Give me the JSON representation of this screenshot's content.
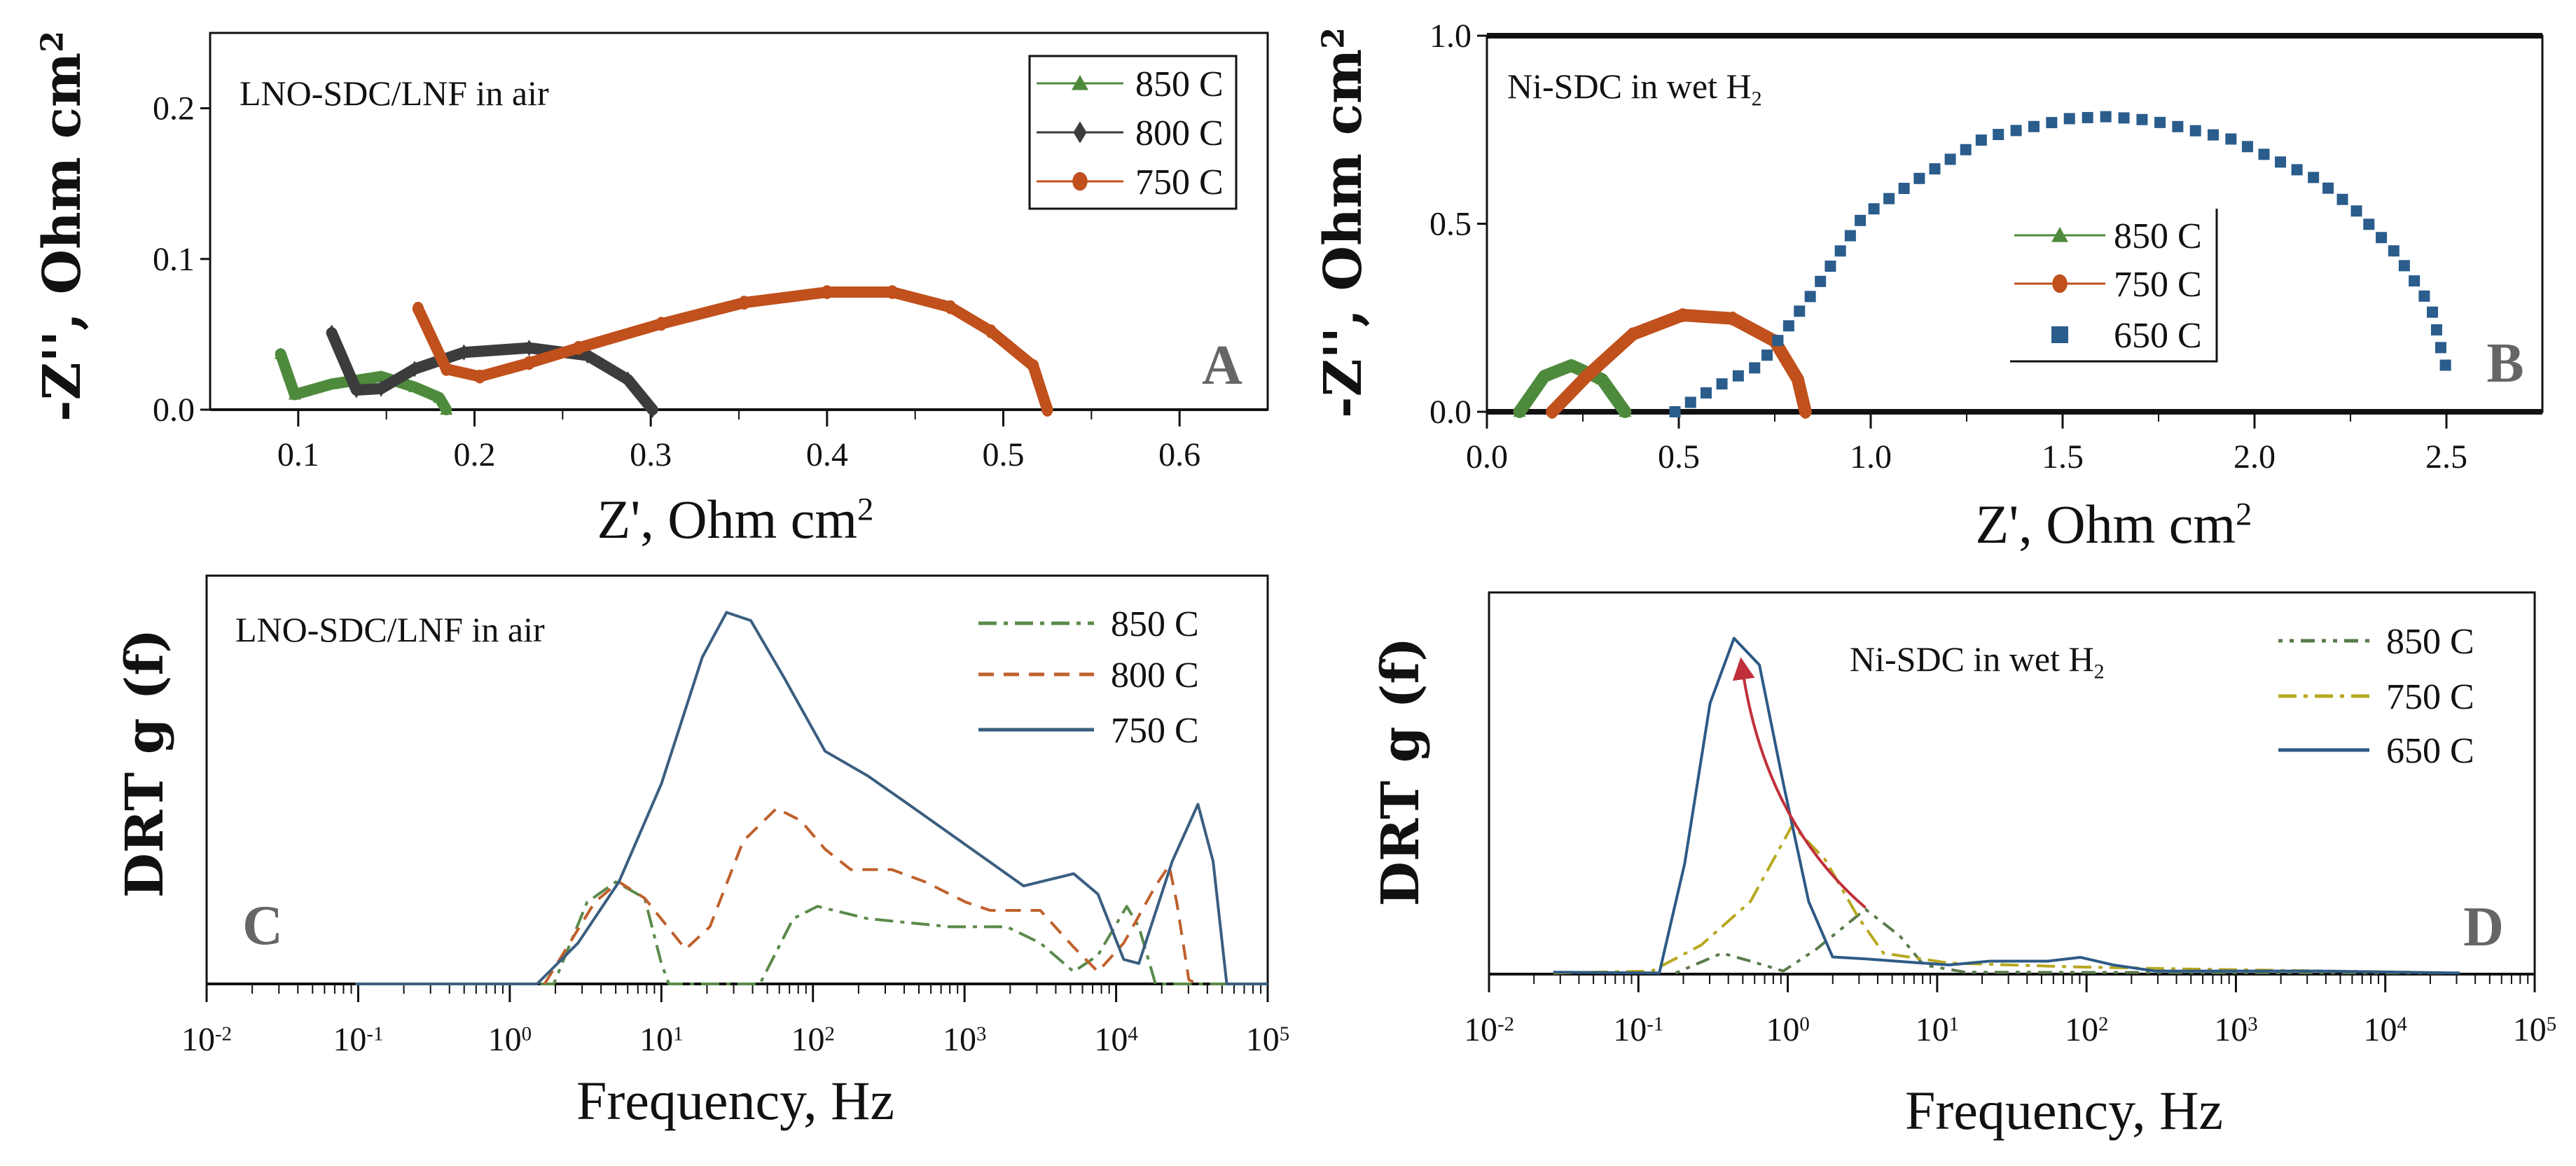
{
  "chart_data": [
    {
      "id": "A",
      "type": "line",
      "panel_letter": "A",
      "annotation": "LNO-SDC/LNF in air",
      "xlabel": "Z', Ohm cm",
      "xlabel_sup": "2",
      "ylabel": "-Z'', Ohm cm",
      "ylabel_sup": "2",
      "xlim": [
        0.05,
        0.65
      ],
      "ylim": [
        0,
        0.25
      ],
      "xticks": [
        0.1,
        0.2,
        0.3,
        0.4,
        0.5,
        0.6
      ],
      "xtick_labels": [
        "0.1",
        "0.2",
        "0.3",
        "0.4",
        "0.5",
        "0.6"
      ],
      "yticks": [
        0.0,
        0.1,
        0.2
      ],
      "ytick_labels": [
        "0.0",
        "0.1",
        "0.2"
      ],
      "legend_placement": "top-right",
      "series": [
        {
          "name": "850 C",
          "color": "#4e8a3c",
          "marker": "triangle",
          "x": [
            0.09,
            0.098,
            0.119,
            0.147,
            0.166,
            0.18,
            0.184
          ],
          "y": [
            0.037,
            0.01,
            0.017,
            0.022,
            0.015,
            0.008,
            0.0
          ]
        },
        {
          "name": "800 C",
          "color": "#3c3c3e",
          "marker": "diamond",
          "x": [
            0.119,
            0.133,
            0.147,
            0.166,
            0.194,
            0.231,
            0.264,
            0.287,
            0.301
          ],
          "y": [
            0.051,
            0.013,
            0.014,
            0.027,
            0.038,
            0.041,
            0.036,
            0.02,
            0.0
          ]
        },
        {
          "name": "750 C",
          "color": "#c0501c",
          "marker": "circle",
          "x": [
            0.168,
            0.184,
            0.203,
            0.231,
            0.259,
            0.306,
            0.353,
            0.4,
            0.437,
            0.47,
            0.493,
            0.517,
            0.525
          ],
          "y": [
            0.067,
            0.027,
            0.022,
            0.031,
            0.041,
            0.057,
            0.071,
            0.078,
            0.078,
            0.068,
            0.052,
            0.029,
            0.0
          ]
        }
      ]
    },
    {
      "id": "B",
      "type": "scatter",
      "panel_letter": "B",
      "annotation": "Ni-SDC in wet H",
      "annotation_sub": "2",
      "xlabel": "Z', Ohm cm",
      "xlabel_sup": "2",
      "ylabel": "-Z'', Ohm cm",
      "ylabel_sup": "2",
      "xlim": [
        0,
        2.75
      ],
      "ylim": [
        0,
        1.0
      ],
      "xticks": [
        0.0,
        0.5,
        1.0,
        1.5,
        2.0,
        2.5
      ],
      "xtick_labels": [
        "0.0",
        "0.5",
        "1.0",
        "1.5",
        "2.0",
        "2.5"
      ],
      "yticks": [
        0.0,
        0.5,
        1.0
      ],
      "ytick_labels": [
        "0.0",
        "0.5",
        "1.0"
      ],
      "legend_placement": "center",
      "series": [
        {
          "name": "850 C",
          "color": "#4e8a3c",
          "marker": "triangle",
          "x": [
            0.085,
            0.15,
            0.22,
            0.3,
            0.36
          ],
          "y": [
            0,
            0.095,
            0.123,
            0.086,
            0
          ]
        },
        {
          "name": "750 C",
          "color": "#c0501c",
          "marker": "circle",
          "x": [
            0.17,
            0.26,
            0.38,
            0.51,
            0.64,
            0.75,
            0.81,
            0.83
          ],
          "y": [
            0,
            0.095,
            0.206,
            0.257,
            0.248,
            0.188,
            0.086,
            0
          ]
        },
        {
          "name": "650 C",
          "color": "#2a5c8c",
          "marker": "square",
          "x": [
            0.49,
            0.6,
            0.71,
            0.77,
            0.85,
            0.98,
            1.11,
            1.3,
            1.52,
            1.62,
            1.73,
            1.94,
            2.16,
            2.26,
            2.37,
            2.46,
            2.49,
            2.5
          ],
          "y": [
            0,
            0.068,
            0.123,
            0.206,
            0.317,
            0.52,
            0.61,
            0.73,
            0.78,
            0.785,
            0.775,
            0.725,
            0.62,
            0.54,
            0.42,
            0.28,
            0.15,
            0.115
          ]
        }
      ]
    },
    {
      "id": "C",
      "type": "line",
      "panel_letter": "C",
      "annotation": "LNO-SDC/LNF in air",
      "xlabel": "Frequency, Hz",
      "ylabel": "DRT g (f)",
      "xscale": "log",
      "xlim_exp": [
        -2,
        5
      ],
      "tick_base": "10",
      "xtick_exps": [
        "-2",
        "-1",
        "0",
        "1",
        "2",
        "3",
        "4",
        "5"
      ],
      "ylim": [
        0,
        1
      ],
      "yticks": [],
      "legend_placement": "top-right",
      "series": [
        {
          "name": "850 C",
          "color": "#5a8a4a",
          "dash": "dashdot",
          "logx": [
            -1.0,
            0.29,
            0.51,
            0.7,
            0.89,
            1.0,
            1.05,
            1.65,
            1.87,
            2.03,
            2.36,
            2.9,
            3.28,
            3.5,
            3.72,
            3.88,
            4.07,
            4.15,
            4.26,
            5.0
          ],
          "y": [
            0,
            0,
            0.2,
            0.25,
            0.21,
            0.05,
            0,
            0,
            0.16,
            0.19,
            0.16,
            0.14,
            0.14,
            0.1,
            0.03,
            0.07,
            0.19,
            0.14,
            0,
            0
          ]
        },
        {
          "name": "800 C",
          "color": "#c0602c",
          "dash": "dash",
          "logx": [
            0.23,
            0.56,
            0.72,
            0.89,
            1.16,
            1.32,
            1.54,
            1.76,
            1.92,
            2.08,
            2.25,
            2.52,
            2.74,
            3.01,
            3.17,
            3.5,
            3.72,
            3.88,
            4.05,
            4.26,
            4.35,
            4.4,
            4.48,
            4.54
          ],
          "y": [
            0,
            0.2,
            0.25,
            0.21,
            0.085,
            0.14,
            0.35,
            0.43,
            0.4,
            0.33,
            0.28,
            0.28,
            0.25,
            0.2,
            0.18,
            0.18,
            0.09,
            0.03,
            0.1,
            0.24,
            0.29,
            0.2,
            0.01,
            0
          ]
        },
        {
          "name": "750 C",
          "color": "#3a5e80",
          "dash": "solid",
          "logx": [
            -1.02,
            0.18,
            0.45,
            0.72,
            1.0,
            1.27,
            1.43,
            1.59,
            1.81,
            2.08,
            2.36,
            2.63,
            3.01,
            3.39,
            3.72,
            3.88,
            4.05,
            4.15,
            4.37,
            4.54,
            4.64,
            4.73,
            5.0
          ],
          "y": [
            0,
            0,
            0.1,
            0.25,
            0.49,
            0.8,
            0.91,
            0.89,
            0.75,
            0.57,
            0.51,
            0.44,
            0.34,
            0.24,
            0.27,
            0.22,
            0.06,
            0.05,
            0.3,
            0.44,
            0.3,
            0,
            0
          ]
        }
      ]
    },
    {
      "id": "D",
      "type": "line",
      "panel_letter": "D",
      "annotation": "Ni-SDC in wet H",
      "annotation_sub": "2",
      "xlabel": "Frequency, Hz",
      "ylabel": "DRT g (f)",
      "xscale": "log",
      "xlim_exp": [
        -2,
        5
      ],
      "tick_base": "10",
      "xtick_exps": [
        "-2",
        "-1",
        "0",
        "1",
        "2",
        "3",
        "4",
        "5"
      ],
      "ylim": [
        0,
        1
      ],
      "yticks": [],
      "legend_placement": "top-right",
      "arrow": {
        "color": "#c0303a",
        "from": [
          0.52,
          0.174
        ],
        "via": [
          -0.03,
          0.45
        ],
        "to": [
          -0.31,
          0.816
        ]
      },
      "series": [
        {
          "name": "850 C",
          "color": "#5a7a4a",
          "dash": "dot",
          "logx": [
            -0.75,
            -0.44,
            -0.25,
            -0.03,
            0.19,
            0.52,
            0.75,
            0.91,
            1.19,
            4.39
          ],
          "y": [
            0.003,
            0.055,
            0.034,
            0.008,
            0.065,
            0.17,
            0.1,
            0.024,
            0.005,
            0.003
          ]
        },
        {
          "name": "750 C",
          "color": "#b8a820",
          "dash": "dashdot",
          "logx": [
            -1.57,
            -0.91,
            -0.58,
            -0.25,
            0.03,
            0.25,
            0.47,
            0.64,
            1.08,
            1.91,
            2.73,
            4.17
          ],
          "y": [
            0.003,
            0.008,
            0.076,
            0.19,
            0.39,
            0.3,
            0.15,
            0.055,
            0.029,
            0.019,
            0.013,
            0.005
          ]
        },
        {
          "name": "650 C",
          "color": "#2e5a86",
          "dash": "solid",
          "logx": [
            -1.57,
            -0.86,
            -0.69,
            -0.52,
            -0.36,
            -0.19,
            -0.03,
            0.14,
            0.3,
            0.52,
            0.86,
            1.08,
            1.35,
            1.74,
            1.96,
            2.18,
            2.46,
            3.56,
            4.5
          ],
          "y": [
            0.005,
            0.003,
            0.29,
            0.71,
            0.88,
            0.81,
            0.5,
            0.19,
            0.045,
            0.04,
            0.03,
            0.024,
            0.034,
            0.034,
            0.044,
            0.024,
            0.008,
            0.008,
            0.003
          ]
        }
      ]
    }
  ]
}
